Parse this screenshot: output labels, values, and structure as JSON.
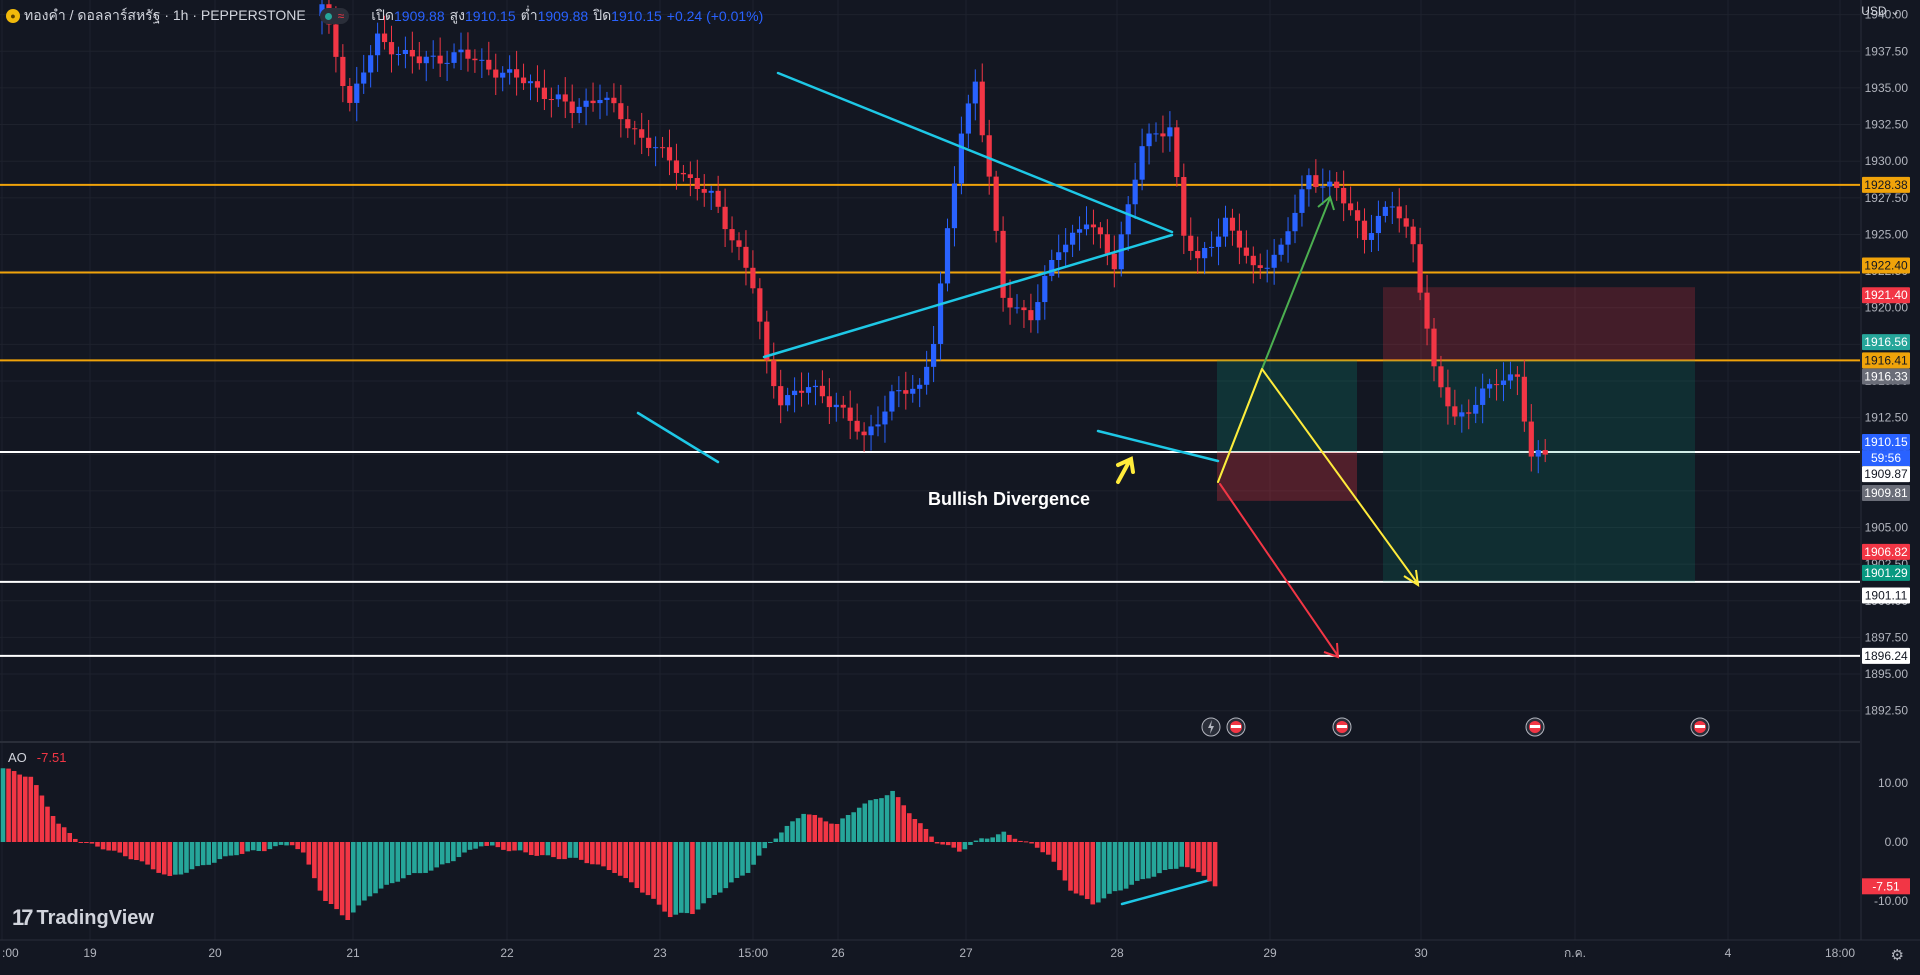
{
  "header": {
    "symbol": "ทองคำ / ดอลลาร์สหรัฐ · 1h · PEPPERSTONE",
    "open_label": "เปิด",
    "open": "1909.88",
    "high_label": "สูง",
    "high": "1910.15",
    "low_label": "ต่ำ",
    "low": "1909.88",
    "close_label": "ปิด",
    "close": "1910.15",
    "change": "+0.24 (+0.01%)",
    "currency": "USD"
  },
  "annotation": "Bullish Divergence",
  "logo": "TradingView",
  "colors": {
    "up": "#2962ff",
    "down": "#f23645",
    "ao_up": "#26a69a",
    "ao_down": "#f23645",
    "level": "#f0a30a",
    "support": "#ffffff",
    "triangle": "#1ec8e6",
    "target_up": "#4caf50",
    "target_mid": "#ffeb3b",
    "target_down": "#f23645"
  },
  "chart_data": [
    {
      "type": "candlestick",
      "x_ticks": [
        ":00",
        "19",
        "20",
        "21",
        "22",
        "23",
        "15:00",
        "26",
        "27",
        "28",
        "29",
        "30",
        "ก.ค.",
        "4",
        "18:00"
      ],
      "y_ticks": [
        "1940.00",
        "1937.50",
        "1935.00",
        "1932.50",
        "1930.00",
        "1927.50",
        "1925.00",
        "1922.50",
        "1920.00",
        "1917.50",
        "1915.00",
        "1912.50",
        "1910.00",
        "1907.50",
        "1905.00",
        "1902.50",
        "1900.00",
        "1897.50",
        "1895.00",
        "1892.50"
      ],
      "ylim": [
        1890.5,
        1941.0
      ],
      "price_labels": [
        {
          "value": 1928.38,
          "text": "1928.38",
          "bg": "#f0a30a",
          "fg": "#131722"
        },
        {
          "value": 1922.4,
          "text": "1922.40",
          "bg": "#f0a30a",
          "fg": "#131722"
        },
        {
          "value": 1921.4,
          "text": "1921.40",
          "bg": "#f23645",
          "fg": "#ffffff"
        },
        {
          "value": 1916.56,
          "text": "1916.56",
          "bg": "#26a69a",
          "fg": "#ffffff"
        },
        {
          "value": 1916.41,
          "text": "1916.41",
          "bg": "#f0a30a",
          "fg": "#131722"
        },
        {
          "value": 1916.33,
          "text": "1916.33",
          "bg": "#6a6d78",
          "fg": "#ffffff"
        },
        {
          "value": 1910.15,
          "text": "1910.15",
          "bg": "#2962ff",
          "fg": "#ffffff"
        },
        {
          "value": 1909.87,
          "text": "1909.87",
          "bg": "#ffffff",
          "fg": "#131722"
        },
        {
          "value": 1909.81,
          "text": "1909.81",
          "bg": "#6a6d78",
          "fg": "#ffffff"
        },
        {
          "value": 1906.82,
          "text": "1906.82",
          "bg": "#f23645",
          "fg": "#ffffff"
        },
        {
          "value": 1901.29,
          "text": "1901.29",
          "bg": "#089981",
          "fg": "#ffffff"
        },
        {
          "value": 1901.11,
          "text": "1901.11",
          "bg": "#ffffff",
          "fg": "#131722"
        },
        {
          "value": 1896.24,
          "text": "1896.24",
          "bg": "#ffffff",
          "fg": "#131722"
        }
      ],
      "countdown": "59:56",
      "horizontal_levels": [
        {
          "value": 1928.38,
          "kind": "level"
        },
        {
          "value": 1922.4,
          "kind": "level"
        },
        {
          "value": 1916.41,
          "kind": "level"
        },
        {
          "value": 1910.15,
          "kind": "support"
        },
        {
          "value": 1901.29,
          "kind": "support"
        },
        {
          "value": 1896.24,
          "kind": "support"
        }
      ],
      "candle_anchors": [
        [
          0,
          1940.5
        ],
        [
          4,
          1934.0
        ],
        [
          8,
          1938.3
        ],
        [
          14,
          1936.8
        ],
        [
          20,
          1937.3
        ],
        [
          26,
          1936.0
        ],
        [
          30,
          1935.3
        ],
        [
          36,
          1933.5
        ],
        [
          40,
          1934.5
        ],
        [
          44,
          1932.5
        ],
        [
          50,
          1930.0
        ],
        [
          56,
          1927.5
        ],
        [
          60,
          1924.0
        ],
        [
          62,
          1921.5
        ],
        [
          64,
          1916.0
        ],
        [
          66,
          1913.8
        ],
        [
          70,
          1914.5
        ],
        [
          74,
          1913.5
        ],
        [
          78,
          1911.0
        ],
        [
          82,
          1914.0
        ],
        [
          86,
          1914.5
        ],
        [
          88,
          1918.0
        ],
        [
          92,
          1932.0
        ],
        [
          94,
          1935.5
        ],
        [
          96,
          1929.0
        ],
        [
          98,
          1920.5
        ],
        [
          102,
          1919.5
        ],
        [
          106,
          1924.0
        ],
        [
          110,
          1926.0
        ],
        [
          114,
          1923.0
        ],
        [
          118,
          1931.0
        ],
        [
          122,
          1932.5
        ],
        [
          124,
          1925.0
        ],
        [
          126,
          1923.0
        ],
        [
          130,
          1926.0
        ],
        [
          134,
          1922.5
        ],
        [
          138,
          1924.0
        ],
        [
          142,
          1929.0
        ],
        [
          146,
          1928.0
        ],
        [
          150,
          1925.0
        ],
        [
          154,
          1927.0
        ],
        [
          157,
          1924.5
        ],
        [
          160,
          1915.5
        ],
        [
          163,
          1912.5
        ],
        [
          166,
          1913.5
        ],
        [
          169,
          1915.0
        ],
        [
          172,
          1915.5
        ],
        [
          174,
          1909.5
        ],
        [
          176,
          1910.15
        ]
      ],
      "x_span_candles": 177
    },
    {
      "type": "bar",
      "name": "AO",
      "value_label": "-7.51",
      "y_ticks": [
        "10.00",
        "0.00",
        "-10.00"
      ],
      "ylim": [
        -15,
        14
      ],
      "current": -7.51,
      "anchors": [
        [
          0,
          12.5
        ],
        [
          5,
          11
        ],
        [
          10,
          3
        ],
        [
          14,
          0
        ],
        [
          18,
          -1
        ],
        [
          24,
          -3
        ],
        [
          30,
          -6
        ],
        [
          36,
          -4
        ],
        [
          42,
          -2
        ],
        [
          46,
          -1.5
        ],
        [
          52,
          -0.3
        ],
        [
          54,
          -2
        ],
        [
          58,
          -10
        ],
        [
          62,
          -13
        ],
        [
          66,
          -9
        ],
        [
          72,
          -6
        ],
        [
          78,
          -4.5
        ],
        [
          82,
          -2.5
        ],
        [
          86,
          -0.5
        ],
        [
          92,
          -1.5
        ],
        [
          98,
          -2.5
        ],
        [
          104,
          -3
        ],
        [
          110,
          -5
        ],
        [
          116,
          -9
        ],
        [
          120,
          -12.5
        ],
        [
          124,
          -12
        ],
        [
          128,
          -9
        ],
        [
          134,
          -5
        ],
        [
          138,
          0
        ],
        [
          144,
          5
        ],
        [
          150,
          3
        ],
        [
          154,
          6
        ],
        [
          160,
          8.5
        ],
        [
          164,
          4
        ],
        [
          168,
          0
        ],
        [
          172,
          -1.5
        ],
        [
          176,
          0.5
        ],
        [
          180,
          1.5
        ],
        [
          184,
          0
        ],
        [
          188,
          -2
        ],
        [
          192,
          -8
        ],
        [
          196,
          -10.5
        ],
        [
          200,
          -8.5
        ],
        [
          206,
          -6
        ],
        [
          212,
          -4
        ],
        [
          216,
          -5.5
        ],
        [
          218,
          -7.51
        ]
      ],
      "bar_count": 219
    }
  ]
}
